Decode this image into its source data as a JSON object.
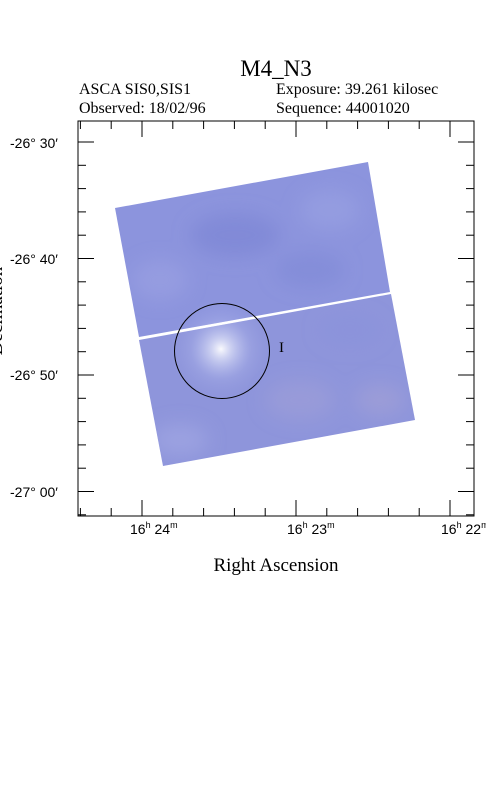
{
  "title": "M4_N3",
  "header": {
    "instrument": "ASCA SIS0,SIS1",
    "observed": "Observed: 18/02/96",
    "exposure": "Exposure: 39.261 kilosec",
    "sequence": "Sequence: 44001020"
  },
  "axes": {
    "xlabel": "Right Ascension",
    "ylabel": "Declination",
    "dec_ticks": [
      "-26° 30′",
      "-26° 40′",
      "-26° 50′",
      "-27° 00′"
    ],
    "ra_ticks": [
      {
        "h": "16",
        "m": "24"
      },
      {
        "h": "16",
        "m": "23"
      },
      {
        "h": "16",
        "m": "22"
      }
    ]
  },
  "image": {
    "source_marker": "I",
    "colors": {
      "field_base": "#8b93dc",
      "field_dark": "#7c86d6",
      "source_bright": "#ffffff",
      "frame": "#000000"
    }
  }
}
